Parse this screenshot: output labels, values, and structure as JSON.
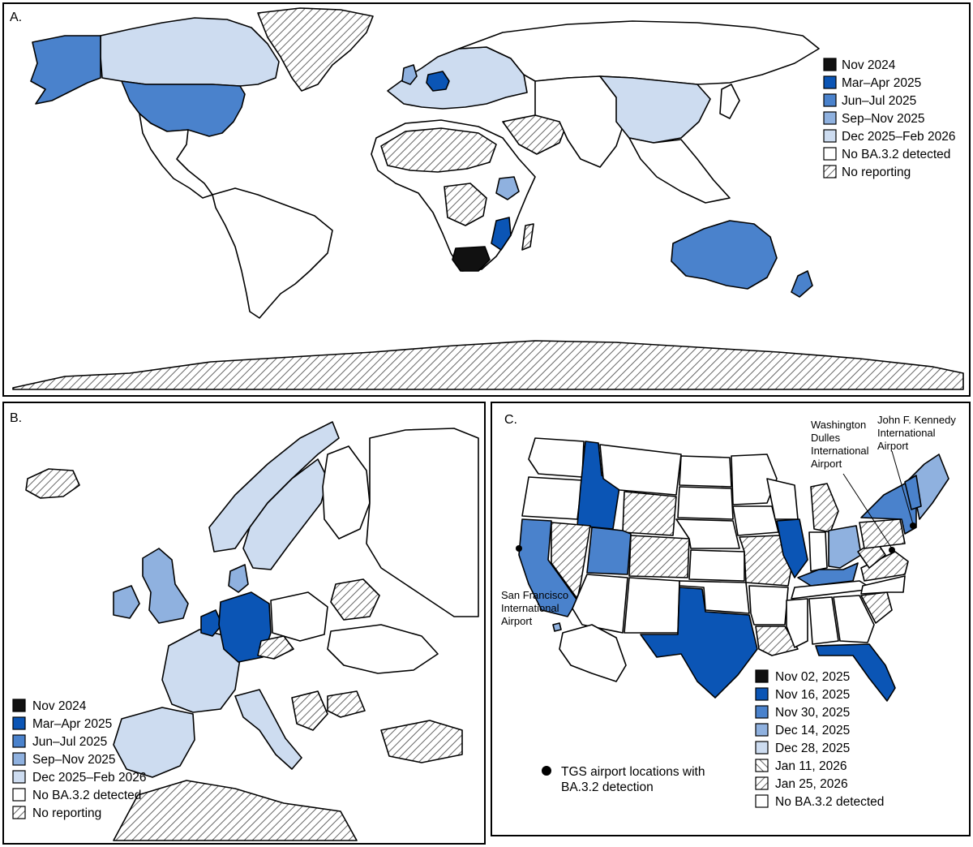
{
  "colors": {
    "nov2024": "#111111",
    "mar_apr_2025": "#0b55b5",
    "jun_jul_2025": "#4a82cc",
    "sep_nov_2025": "#8fb1df",
    "dec2025_feb2026": "#cddcf0",
    "none": "#ffffff"
  },
  "panel_a": {
    "label": "A.",
    "legend": [
      {
        "label": "Nov 2024",
        "fill": "nov2024"
      },
      {
        "label": "Mar–Apr 2025",
        "fill": "mar_apr_2025"
      },
      {
        "label": "Jun–Jul 2025",
        "fill": "jun_jul_2025"
      },
      {
        "label": "Sep–Nov 2025",
        "fill": "sep_nov_2025"
      },
      {
        "label": "Dec 2025–Feb 2026",
        "fill": "dec2025_feb2026"
      },
      {
        "label": "No BA.3.2 detected",
        "fill": "none"
      },
      {
        "label": "No reporting",
        "fill": "hatch"
      }
    ]
  },
  "panel_b": {
    "label": "B.",
    "legend": [
      {
        "label": "Nov 2024",
        "fill": "nov2024"
      },
      {
        "label": "Mar–Apr 2025",
        "fill": "mar_apr_2025"
      },
      {
        "label": "Jun–Jul 2025",
        "fill": "jun_jul_2025"
      },
      {
        "label": "Sep–Nov 2025",
        "fill": "sep_nov_2025"
      },
      {
        "label": "Dec 2025–Feb 2026",
        "fill": "dec2025_feb2026"
      },
      {
        "label": "No BA.3.2 detected",
        "fill": "none"
      },
      {
        "label": "No reporting",
        "fill": "hatch"
      }
    ]
  },
  "panel_c": {
    "label": "C.",
    "airports": {
      "washington": [
        "Washington",
        "Dulles",
        "International",
        "Airport"
      ],
      "jfk": [
        "John F. Kennedy",
        "International",
        "Airport"
      ],
      "sfo": [
        "San Francisco",
        "International",
        "Airport"
      ]
    },
    "airport_legend": [
      "TGS airport locations with",
      "BA.3.2 detection"
    ],
    "legend": [
      {
        "label": "Nov 02, 2025",
        "fill": "nov2024"
      },
      {
        "label": "Nov 16, 2025",
        "fill": "mar_apr_2025"
      },
      {
        "label": "Nov 30, 2025",
        "fill": "jun_jul_2025"
      },
      {
        "label": "Dec 14, 2025",
        "fill": "sep_nov_2025"
      },
      {
        "label": "Dec 28, 2025",
        "fill": "dec2025_feb2026"
      },
      {
        "label": "Jan 11, 2026",
        "fill": "hatch2"
      },
      {
        "label": "Jan 25, 2026",
        "fill": "hatch"
      },
      {
        "label": "No BA.3.2 detected",
        "fill": "none"
      }
    ]
  }
}
